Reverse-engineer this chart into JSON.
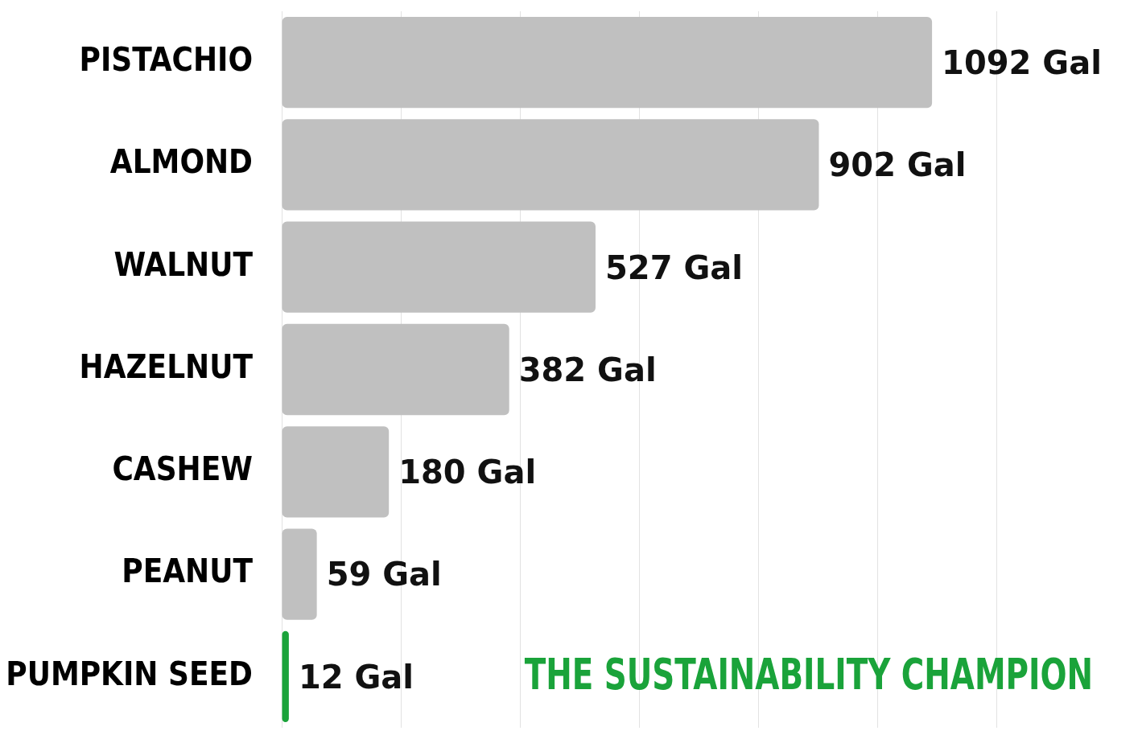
{
  "chart_data": {
    "type": "bar",
    "orientation": "horizontal",
    "categories": [
      "PISTACHIO",
      "ALMOND",
      "WALNUT",
      "HAZELNUT",
      "CASHEW",
      "PEANUT",
      "PUMPKIN SEED"
    ],
    "values": [
      1092,
      902,
      527,
      382,
      180,
      59,
      12
    ],
    "colors": [
      "#c0c0c0",
      "#c0c0c0",
      "#c0c0c0",
      "#c0c0c0",
      "#c0c0c0",
      "#c0c0c0",
      "#1aa33a"
    ],
    "value_labels": [
      "1092 Gal",
      "902 Gal",
      "527 Gal",
      "382 Gal",
      "180 Gal",
      "59 Gal",
      "12 Gal"
    ],
    "xlim": [
      0,
      1200
    ],
    "xticks": [
      {
        "value": 0,
        "label": null
      },
      {
        "value": 200,
        "label": null
      },
      {
        "value": 400,
        "label": null
      },
      {
        "value": 600,
        "label": null
      },
      {
        "value": 800,
        "label": null
      },
      {
        "value": 1000,
        "label": null
      },
      {
        "value": 1200,
        "label": null
      }
    ],
    "grid": "x",
    "tick_labels": "y",
    "legend": false,
    "annotations": [
      "THE SUSTAINABILITY CHAMPION"
    ]
  }
}
